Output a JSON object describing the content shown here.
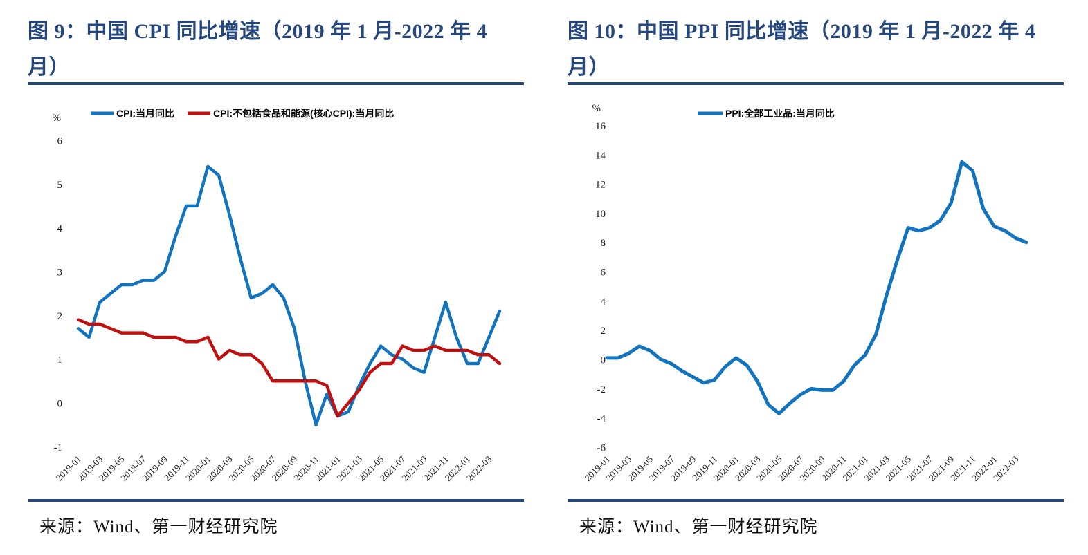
{
  "page": {
    "background": "#ffffff",
    "accent_navy": "#26477E"
  },
  "source": "来源：Wind、第一财经研究院",
  "chart_data": [
    {
      "type": "line",
      "figure_label": "图 9",
      "title": "图 9：中国 CPI 同比增速（2019 年 1 月-2022 年 4 月）",
      "unit": "%",
      "xlabel": "",
      "ylabel": "",
      "ylim": [
        -1,
        6
      ],
      "yticks": [
        6,
        5,
        4,
        3,
        2,
        1,
        0,
        -1
      ],
      "grid": false,
      "legend_position": "top",
      "x_tick_step": 2,
      "x": [
        "2019-01",
        "2019-02",
        "2019-03",
        "2019-04",
        "2019-05",
        "2019-06",
        "2019-07",
        "2019-08",
        "2019-09",
        "2019-10",
        "2019-11",
        "2019-12",
        "2020-01",
        "2020-02",
        "2020-03",
        "2020-04",
        "2020-05",
        "2020-06",
        "2020-07",
        "2020-08",
        "2020-09",
        "2020-10",
        "2020-11",
        "2020-12",
        "2021-01",
        "2021-02",
        "2021-03",
        "2021-04",
        "2021-05",
        "2021-06",
        "2021-07",
        "2021-08",
        "2021-09",
        "2021-10",
        "2021-11",
        "2021-12",
        "2022-01",
        "2022-02",
        "2022-03",
        "2022-04"
      ],
      "series": [
        {
          "name": "CPI:当月同比",
          "color": "#1273BE",
          "values": [
            1.7,
            1.5,
            2.3,
            2.5,
            2.7,
            2.7,
            2.8,
            2.8,
            3.0,
            3.8,
            4.5,
            4.5,
            5.4,
            5.2,
            4.3,
            3.3,
            2.4,
            2.5,
            2.7,
            2.4,
            1.7,
            0.5,
            -0.5,
            0.2,
            -0.3,
            -0.2,
            0.4,
            0.9,
            1.3,
            1.1,
            1.0,
            0.8,
            0.7,
            1.5,
            2.3,
            1.5,
            0.9,
            0.9,
            1.5,
            2.1
          ]
        },
        {
          "name": "CPI:不包括食品和能源(核心CPI):当月同比",
          "color": "#C01010",
          "values": [
            1.9,
            1.8,
            1.8,
            1.7,
            1.6,
            1.6,
            1.6,
            1.5,
            1.5,
            1.5,
            1.4,
            1.4,
            1.5,
            1.0,
            1.2,
            1.1,
            1.1,
            0.9,
            0.5,
            0.5,
            0.5,
            0.5,
            0.5,
            0.4,
            -0.3,
            0.0,
            0.3,
            0.7,
            0.9,
            0.9,
            1.3,
            1.2,
            1.2,
            1.3,
            1.2,
            1.2,
            1.2,
            1.1,
            1.1,
            0.9
          ]
        }
      ]
    },
    {
      "type": "line",
      "figure_label": "图 10",
      "title": "图 10：中国 PPI 同比增速（2019 年 1 月-2022 年 4 月）",
      "unit": "%",
      "xlabel": "",
      "ylabel": "",
      "ylim": [
        -6,
        16
      ],
      "yticks": [
        16,
        14,
        12,
        10,
        8,
        6,
        4,
        2,
        0,
        -2,
        -4,
        -6
      ],
      "grid": false,
      "legend_position": "top",
      "x_tick_step": 2,
      "x": [
        "2019-01",
        "2019-02",
        "2019-03",
        "2019-04",
        "2019-05",
        "2019-06",
        "2019-07",
        "2019-08",
        "2019-09",
        "2019-10",
        "2019-11",
        "2019-12",
        "2020-01",
        "2020-02",
        "2020-03",
        "2020-04",
        "2020-05",
        "2020-06",
        "2020-07",
        "2020-08",
        "2020-09",
        "2020-10",
        "2020-11",
        "2020-12",
        "2021-01",
        "2021-02",
        "2021-03",
        "2021-04",
        "2021-05",
        "2021-06",
        "2021-07",
        "2021-08",
        "2021-09",
        "2021-10",
        "2021-11",
        "2021-12",
        "2022-01",
        "2022-02",
        "2022-03",
        "2022-04"
      ],
      "series": [
        {
          "name": "PPI:全部工业品:当月同比",
          "color": "#1273BE",
          "values": [
            0.1,
            0.1,
            0.4,
            0.9,
            0.6,
            0.0,
            -0.3,
            -0.8,
            -1.2,
            -1.6,
            -1.4,
            -0.5,
            0.1,
            -0.4,
            -1.5,
            -3.1,
            -3.7,
            -3.0,
            -2.4,
            -2.0,
            -2.1,
            -2.1,
            -1.5,
            -0.4,
            0.3,
            1.7,
            4.4,
            6.8,
            9.0,
            8.8,
            9.0,
            9.5,
            10.7,
            13.5,
            12.9,
            10.3,
            9.1,
            8.8,
            8.3,
            8.0
          ]
        }
      ]
    }
  ]
}
